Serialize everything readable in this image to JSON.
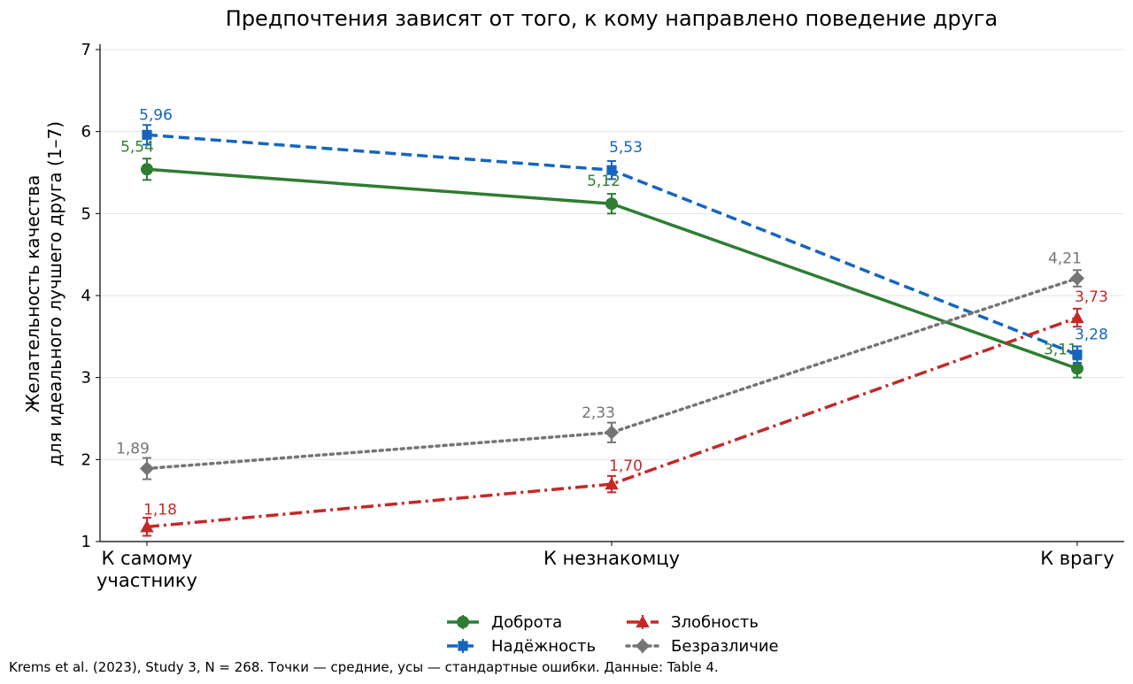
{
  "chart_data": {
    "type": "line",
    "title": "Предпочтения зависят от того, к кому направлено поведение друга",
    "xlabel": "",
    "ylabel_lines": [
      "Желательность качества",
      "для идеального лучшего друга (1–7)"
    ],
    "categories": [
      [
        "К самому",
        "участнику"
      ],
      [
        "К незнакомцу"
      ],
      [
        "К врагу"
      ]
    ],
    "ylim": [
      1,
      7
    ],
    "yticks": [
      "1",
      "2",
      "3",
      "4",
      "5",
      "6",
      "7"
    ],
    "grid": "horizontal",
    "legend_position": "bottom-center",
    "series": [
      {
        "name": "Доброта",
        "values": [
          5.54,
          5.12,
          3.11
        ],
        "errors": [
          0.13,
          0.12,
          0.11
        ],
        "labels": [
          "5,54",
          "5,12",
          "3,11"
        ],
        "color": "#2e7d32",
        "marker": "circle",
        "dash": "solid"
      },
      {
        "name": "Надёжность",
        "values": [
          5.96,
          5.53,
          3.28
        ],
        "errors": [
          0.12,
          0.11,
          0.1
        ],
        "labels": [
          "5,96",
          "5,53",
          "3,28"
        ],
        "color": "#1565c0",
        "marker": "square",
        "dash": "dashed"
      },
      {
        "name": "Злобность",
        "values": [
          1.18,
          1.7,
          3.73
        ],
        "errors": [
          0.11,
          0.1,
          0.11
        ],
        "labels": [
          "1,18",
          "1,70",
          "3,73"
        ],
        "color": "#c62828",
        "marker": "triangle",
        "dash": "dashdot"
      },
      {
        "name": "Безразличие",
        "values": [
          1.89,
          2.33,
          4.21
        ],
        "errors": [
          0.13,
          0.12,
          0.1
        ],
        "labels": [
          "1,89",
          "2,33",
          "4,21"
        ],
        "color": "#757575",
        "marker": "diamond",
        "dash": "dotted"
      }
    ]
  },
  "caption": "Krems et al. (2023), Study 3, N = 268. Точки — средние, усы — стандартные ошибки. Данные: Table 4."
}
